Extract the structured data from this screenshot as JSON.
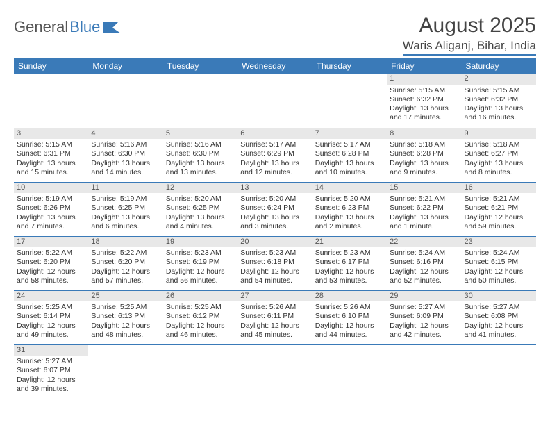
{
  "logo": {
    "text1": "General",
    "text2": "Blue"
  },
  "title": "August 2025",
  "location": "Waris Aliganj, Bihar, India",
  "day_headers": [
    "Sunday",
    "Monday",
    "Tuesday",
    "Wednesday",
    "Thursday",
    "Friday",
    "Saturday"
  ],
  "colors": {
    "header_bg": "#3a7ab8",
    "header_text": "#ffffff",
    "daynum_bg": "#e8e8e8",
    "border": "#3a7ab8",
    "text": "#333333"
  },
  "typography": {
    "title_fontsize": 30,
    "location_fontsize": 17,
    "header_fontsize": 12,
    "cell_fontsize": 10.5
  },
  "weeks": [
    [
      null,
      null,
      null,
      null,
      null,
      {
        "n": "1",
        "sr": "Sunrise: 5:15 AM",
        "ss": "Sunset: 6:32 PM",
        "dl1": "Daylight: 13 hours",
        "dl2": "and 17 minutes."
      },
      {
        "n": "2",
        "sr": "Sunrise: 5:15 AM",
        "ss": "Sunset: 6:32 PM",
        "dl1": "Daylight: 13 hours",
        "dl2": "and 16 minutes."
      }
    ],
    [
      {
        "n": "3",
        "sr": "Sunrise: 5:15 AM",
        "ss": "Sunset: 6:31 PM",
        "dl1": "Daylight: 13 hours",
        "dl2": "and 15 minutes."
      },
      {
        "n": "4",
        "sr": "Sunrise: 5:16 AM",
        "ss": "Sunset: 6:30 PM",
        "dl1": "Daylight: 13 hours",
        "dl2": "and 14 minutes."
      },
      {
        "n": "5",
        "sr": "Sunrise: 5:16 AM",
        "ss": "Sunset: 6:30 PM",
        "dl1": "Daylight: 13 hours",
        "dl2": "and 13 minutes."
      },
      {
        "n": "6",
        "sr": "Sunrise: 5:17 AM",
        "ss": "Sunset: 6:29 PM",
        "dl1": "Daylight: 13 hours",
        "dl2": "and 12 minutes."
      },
      {
        "n": "7",
        "sr": "Sunrise: 5:17 AM",
        "ss": "Sunset: 6:28 PM",
        "dl1": "Daylight: 13 hours",
        "dl2": "and 10 minutes."
      },
      {
        "n": "8",
        "sr": "Sunrise: 5:18 AM",
        "ss": "Sunset: 6:28 PM",
        "dl1": "Daylight: 13 hours",
        "dl2": "and 9 minutes."
      },
      {
        "n": "9",
        "sr": "Sunrise: 5:18 AM",
        "ss": "Sunset: 6:27 PM",
        "dl1": "Daylight: 13 hours",
        "dl2": "and 8 minutes."
      }
    ],
    [
      {
        "n": "10",
        "sr": "Sunrise: 5:19 AM",
        "ss": "Sunset: 6:26 PM",
        "dl1": "Daylight: 13 hours",
        "dl2": "and 7 minutes."
      },
      {
        "n": "11",
        "sr": "Sunrise: 5:19 AM",
        "ss": "Sunset: 6:25 PM",
        "dl1": "Daylight: 13 hours",
        "dl2": "and 6 minutes."
      },
      {
        "n": "12",
        "sr": "Sunrise: 5:20 AM",
        "ss": "Sunset: 6:25 PM",
        "dl1": "Daylight: 13 hours",
        "dl2": "and 4 minutes."
      },
      {
        "n": "13",
        "sr": "Sunrise: 5:20 AM",
        "ss": "Sunset: 6:24 PM",
        "dl1": "Daylight: 13 hours",
        "dl2": "and 3 minutes."
      },
      {
        "n": "14",
        "sr": "Sunrise: 5:20 AM",
        "ss": "Sunset: 6:23 PM",
        "dl1": "Daylight: 13 hours",
        "dl2": "and 2 minutes."
      },
      {
        "n": "15",
        "sr": "Sunrise: 5:21 AM",
        "ss": "Sunset: 6:22 PM",
        "dl1": "Daylight: 13 hours",
        "dl2": "and 1 minute."
      },
      {
        "n": "16",
        "sr": "Sunrise: 5:21 AM",
        "ss": "Sunset: 6:21 PM",
        "dl1": "Daylight: 12 hours",
        "dl2": "and 59 minutes."
      }
    ],
    [
      {
        "n": "17",
        "sr": "Sunrise: 5:22 AM",
        "ss": "Sunset: 6:20 PM",
        "dl1": "Daylight: 12 hours",
        "dl2": "and 58 minutes."
      },
      {
        "n": "18",
        "sr": "Sunrise: 5:22 AM",
        "ss": "Sunset: 6:20 PM",
        "dl1": "Daylight: 12 hours",
        "dl2": "and 57 minutes."
      },
      {
        "n": "19",
        "sr": "Sunrise: 5:23 AM",
        "ss": "Sunset: 6:19 PM",
        "dl1": "Daylight: 12 hours",
        "dl2": "and 56 minutes."
      },
      {
        "n": "20",
        "sr": "Sunrise: 5:23 AM",
        "ss": "Sunset: 6:18 PM",
        "dl1": "Daylight: 12 hours",
        "dl2": "and 54 minutes."
      },
      {
        "n": "21",
        "sr": "Sunrise: 5:23 AM",
        "ss": "Sunset: 6:17 PM",
        "dl1": "Daylight: 12 hours",
        "dl2": "and 53 minutes."
      },
      {
        "n": "22",
        "sr": "Sunrise: 5:24 AM",
        "ss": "Sunset: 6:16 PM",
        "dl1": "Daylight: 12 hours",
        "dl2": "and 52 minutes."
      },
      {
        "n": "23",
        "sr": "Sunrise: 5:24 AM",
        "ss": "Sunset: 6:15 PM",
        "dl1": "Daylight: 12 hours",
        "dl2": "and 50 minutes."
      }
    ],
    [
      {
        "n": "24",
        "sr": "Sunrise: 5:25 AM",
        "ss": "Sunset: 6:14 PM",
        "dl1": "Daylight: 12 hours",
        "dl2": "and 49 minutes."
      },
      {
        "n": "25",
        "sr": "Sunrise: 5:25 AM",
        "ss": "Sunset: 6:13 PM",
        "dl1": "Daylight: 12 hours",
        "dl2": "and 48 minutes."
      },
      {
        "n": "26",
        "sr": "Sunrise: 5:25 AM",
        "ss": "Sunset: 6:12 PM",
        "dl1": "Daylight: 12 hours",
        "dl2": "and 46 minutes."
      },
      {
        "n": "27",
        "sr": "Sunrise: 5:26 AM",
        "ss": "Sunset: 6:11 PM",
        "dl1": "Daylight: 12 hours",
        "dl2": "and 45 minutes."
      },
      {
        "n": "28",
        "sr": "Sunrise: 5:26 AM",
        "ss": "Sunset: 6:10 PM",
        "dl1": "Daylight: 12 hours",
        "dl2": "and 44 minutes."
      },
      {
        "n": "29",
        "sr": "Sunrise: 5:27 AM",
        "ss": "Sunset: 6:09 PM",
        "dl1": "Daylight: 12 hours",
        "dl2": "and 42 minutes."
      },
      {
        "n": "30",
        "sr": "Sunrise: 5:27 AM",
        "ss": "Sunset: 6:08 PM",
        "dl1": "Daylight: 12 hours",
        "dl2": "and 41 minutes."
      }
    ],
    [
      {
        "n": "31",
        "sr": "Sunrise: 5:27 AM",
        "ss": "Sunset: 6:07 PM",
        "dl1": "Daylight: 12 hours",
        "dl2": "and 39 minutes."
      },
      null,
      null,
      null,
      null,
      null,
      null
    ]
  ]
}
